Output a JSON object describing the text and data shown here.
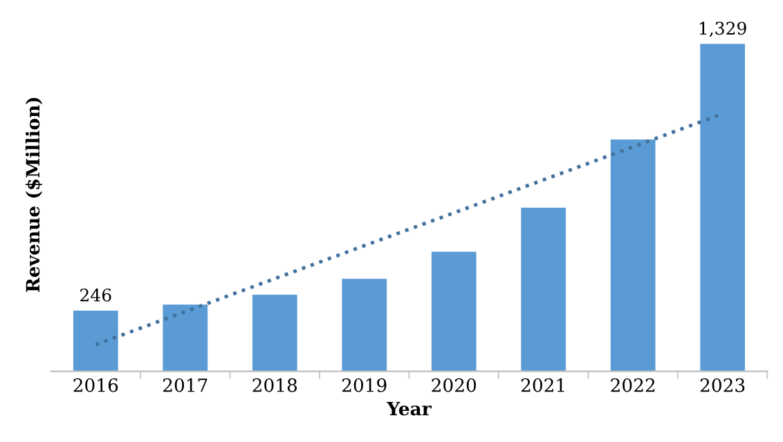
{
  "chart_data": {
    "type": "bar",
    "xlabel": "Year",
    "ylabel": "Revenue ($Million)",
    "categories": [
      "2016",
      "2017",
      "2018",
      "2019",
      "2020",
      "2021",
      "2022",
      "2023"
    ],
    "series": [
      {
        "color": "#5b9bd5",
        "values": [
          246,
          271,
          311,
          375,
          485,
          664,
          941,
          1329
        ],
        "value_labels": [
          "246",
          null,
          null,
          null,
          null,
          null,
          null,
          "1,329"
        ]
      },
      {
        "type": "line",
        "color": "#41719c",
        "values": [
          108,
          242,
          376,
          510,
          643,
          777,
          911,
          1045
        ],
        "line_style": "dotted"
      }
    ],
    "grid": false
  }
}
